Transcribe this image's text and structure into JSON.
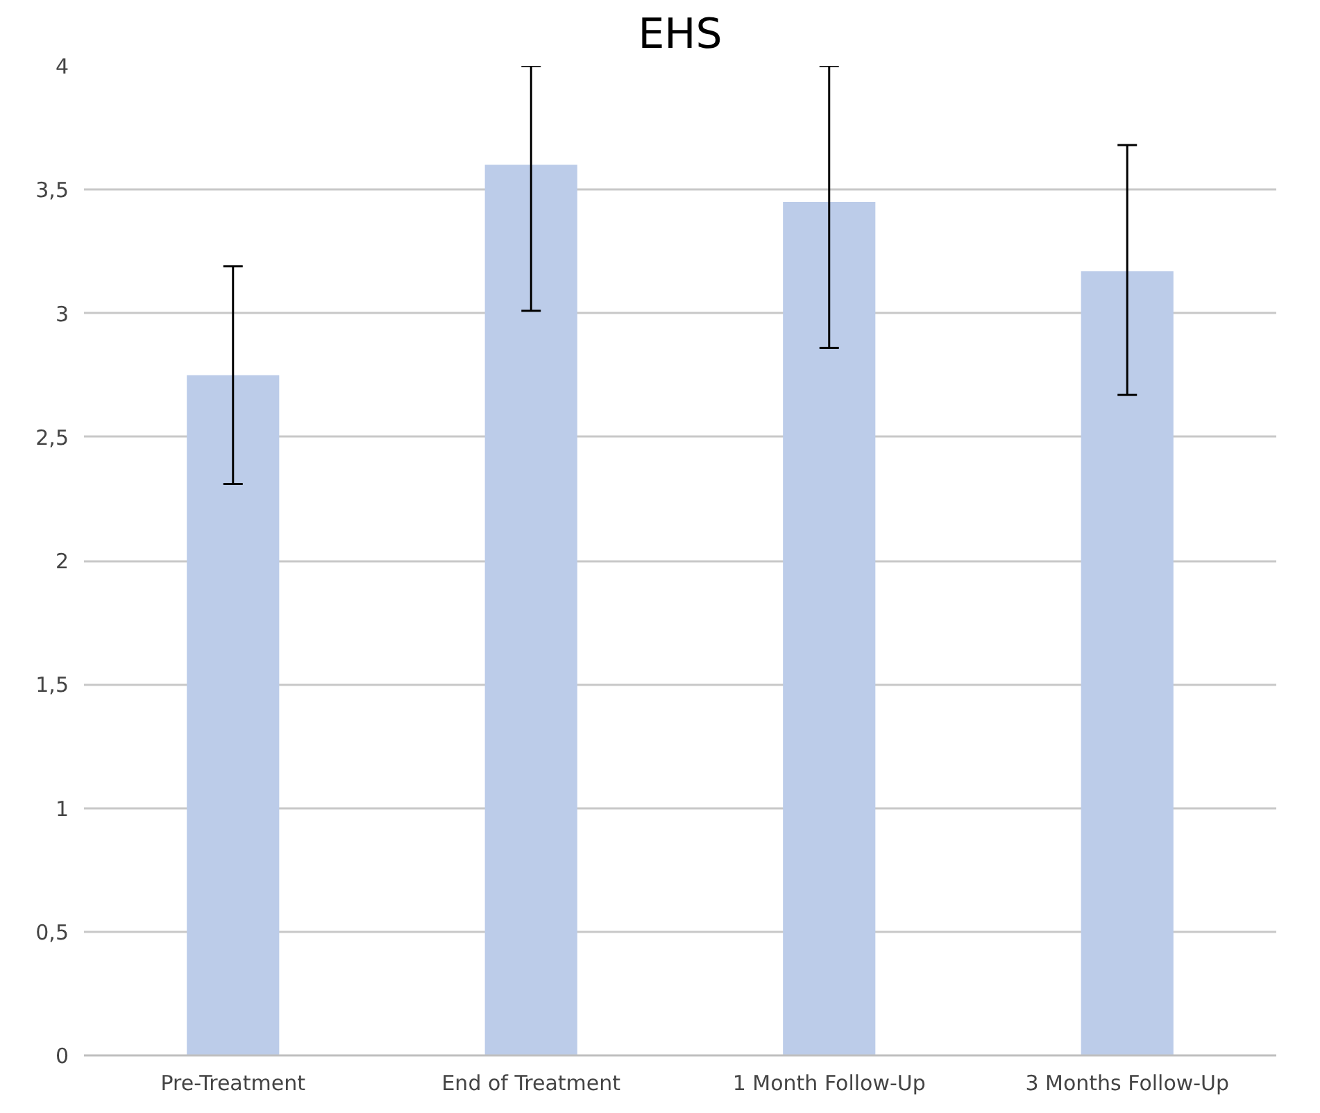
{
  "chart_data": {
    "type": "bar",
    "title": "EHS",
    "categories": [
      "Pre-Treatment",
      "End of Treatment",
      "1 Month Follow-Up",
      "3 Months Follow-Up"
    ],
    "values": [
      2.75,
      3.6,
      3.45,
      3.17
    ],
    "errors": [
      0.44,
      [
        3.01,
        4
      ],
      [
        2.86,
        4
      ],
      [
        2.67,
        3.68
      ]
    ],
    "color": "#bccce9",
    "ylim": [
      0,
      4
    ],
    "yticks": [
      0,
      {
        "value": 0.5,
        "label": "0,5"
      },
      1,
      {
        "value": 1.5,
        "label": "1,5"
      },
      2,
      {
        "value": 2.5,
        "label": "2,5"
      },
      3,
      {
        "value": 3.5,
        "label": "3,5"
      },
      4
    ],
    "grid": "y"
  }
}
